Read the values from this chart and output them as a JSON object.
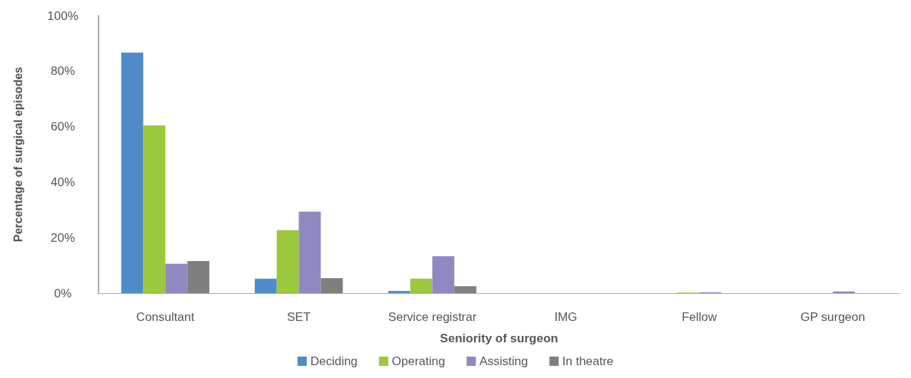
{
  "chart_data": {
    "type": "bar",
    "xlabel": "Seniority of surgeon",
    "ylabel": "Percentage of surgical episodes",
    "categories": [
      "Consultant",
      "SET",
      "Service registrar",
      "IMG",
      "Fellow",
      "GP surgeon"
    ],
    "series": [
      {
        "name": "Deciding",
        "color": "#4f8bc9",
        "values": [
          86.7,
          5.2,
          0.8,
          0,
          0,
          0
        ]
      },
      {
        "name": "Operating",
        "color": "#9bc83c",
        "values": [
          60.5,
          22.7,
          5.2,
          0,
          0.2,
          0
        ]
      },
      {
        "name": "Assisting",
        "color": "#8f89c1",
        "values": [
          10.6,
          29.4,
          13.3,
          0,
          0.3,
          0.6
        ]
      },
      {
        "name": "In theatre",
        "color": "#7f7f7f",
        "values": [
          11.6,
          5.4,
          2.5,
          0,
          0,
          0
        ]
      }
    ],
    "ylim": [
      0,
      100
    ],
    "yticks": [
      {
        "value": 0,
        "label": "0%"
      },
      {
        "value": 20,
        "label": "20%"
      },
      {
        "value": 40,
        "label": "40%"
      },
      {
        "value": 60,
        "label": "60%"
      },
      {
        "value": 80,
        "label": "80%"
      },
      {
        "value": 100,
        "label": "100%"
      }
    ],
    "grid": false,
    "legend": "bottom"
  }
}
